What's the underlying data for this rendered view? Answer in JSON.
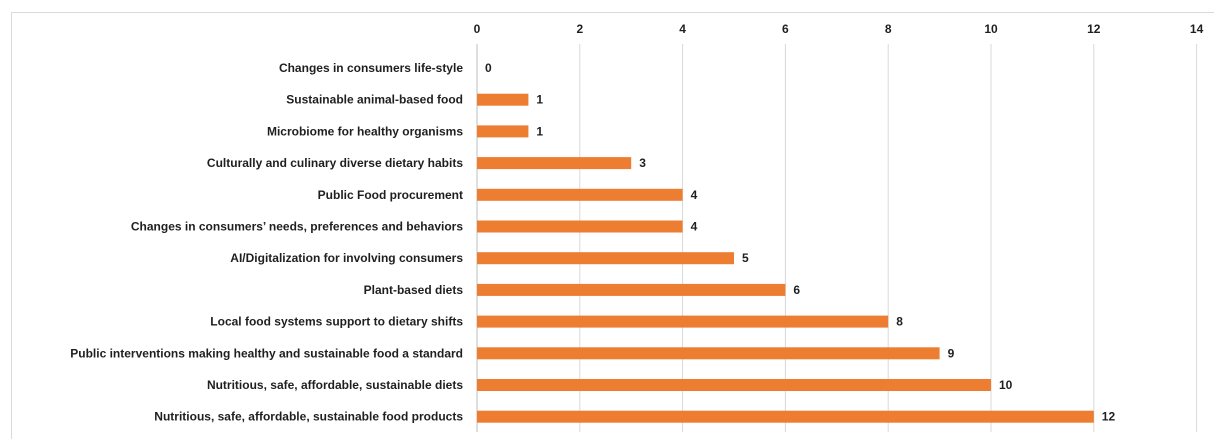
{
  "chart_data": {
    "type": "bar",
    "orientation": "horizontal",
    "title": "",
    "xlabel": "",
    "ylabel": "",
    "xlim": [
      0,
      14
    ],
    "ticks": [
      0,
      2,
      4,
      6,
      8,
      10,
      12,
      14
    ],
    "tick_labels": [
      "0",
      "2",
      "4",
      "6",
      "8",
      "10",
      "12",
      "14"
    ],
    "axis_position": "top",
    "grid": true,
    "bar_color": "#ED7D31",
    "categories": [
      "Changes in consumers life-style",
      "Sustainable animal-based food",
      "Microbiome for healthy organisms",
      "Culturally and culinary diverse dietary habits",
      "Public Food procurement",
      "Changes in consumers’ needs, preferences and behaviors",
      "AI/Digitalization for involving consumers",
      "Plant-based diets",
      "Local food systems support to dietary shifts",
      "Public interventions making healthy and sustainable food a standard",
      "Nutritious, safe, affordable, sustainable diets",
      "Nutritious, safe, affordable, sustainable food products"
    ],
    "values": [
      0,
      1,
      1,
      3,
      4,
      4,
      5,
      6,
      8,
      9,
      10,
      12
    ],
    "data_labels": [
      "0",
      "1",
      "1",
      "3",
      "4",
      "4",
      "5",
      "6",
      "8",
      "9",
      "10",
      "12"
    ]
  }
}
